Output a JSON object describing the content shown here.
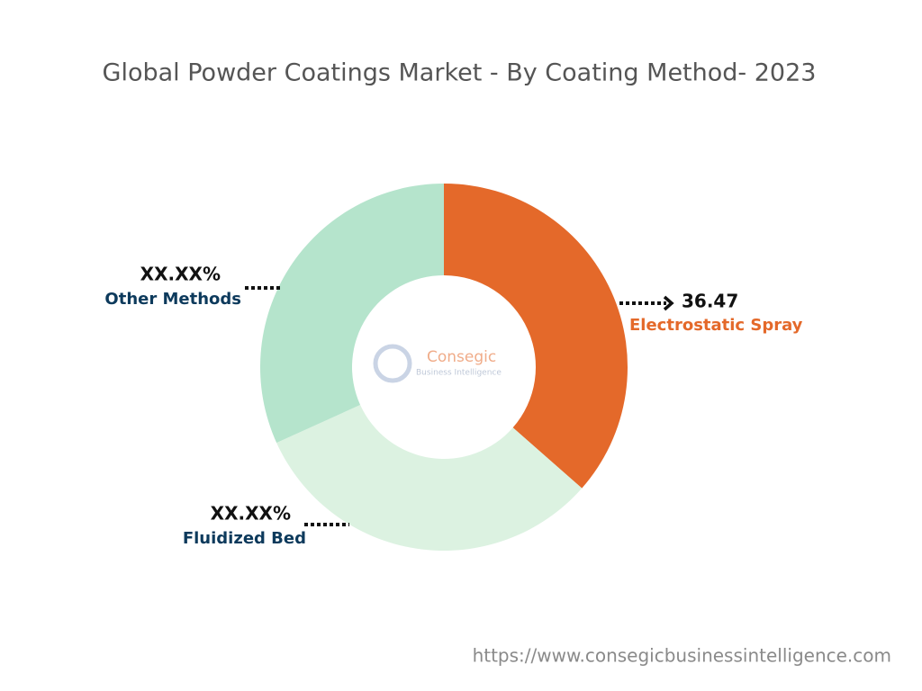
{
  "chart_data": {
    "type": "donut",
    "title": "Global Powder Coatings Market - By Coating Method- 2023",
    "categories": [
      "Electrostatic Spray",
      "Fluidized Bed",
      "Other Methods"
    ],
    "values": [
      36.47,
      31.77,
      31.76
    ],
    "value_labels": [
      "36.47",
      "XX.XX%",
      "XX.XX%"
    ],
    "colors": [
      "#e4692a",
      "#dcf2e1",
      "#b5e4cc"
    ],
    "label_colors": [
      "#e4692a",
      "#0d3a5c",
      "#0d3a5c"
    ],
    "watermark": {
      "name": "Consegic",
      "tagline": "Business Intelligence"
    },
    "source": "https://www.consegicbusinessintelligence.com"
  }
}
